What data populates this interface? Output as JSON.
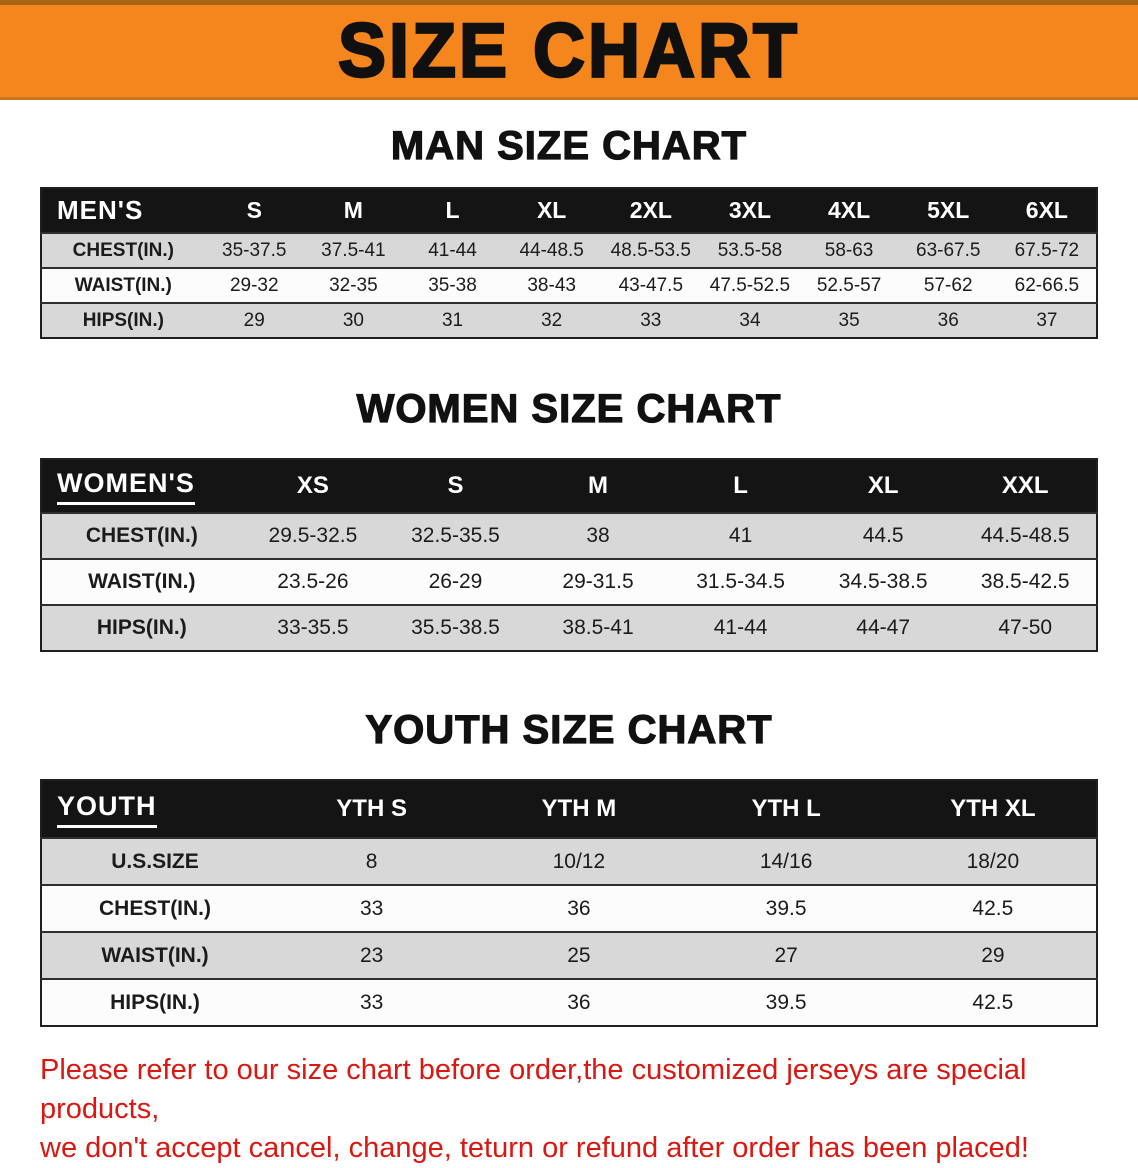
{
  "banner": {
    "title": "SIZE CHART"
  },
  "colors": {
    "banner_orange": "#f5861d",
    "table_header_black": "#141414",
    "row_gray": "#d8d8d8",
    "row_white": "#fcfcfc",
    "disclaimer_red": "#da1710"
  },
  "men": {
    "heading": "MAN SIZE CHART",
    "header": [
      "MEN'S",
      "S",
      "M",
      "L",
      "XL",
      "2XL",
      "3XL",
      "4XL",
      "5XL",
      "6XL"
    ],
    "rows": [
      {
        "label": "CHEST(IN.)",
        "v": [
          "35-37.5",
          "37.5-41",
          "41-44",
          "44-48.5",
          "48.5-53.5",
          "53.5-58",
          "58-63",
          "63-67.5",
          "67.5-72"
        ]
      },
      {
        "label": "WAIST(IN.)",
        "v": [
          "29-32",
          "32-35",
          "35-38",
          "38-43",
          "43-47.5",
          "47.5-52.5",
          "52.5-57",
          "57-62",
          "62-66.5"
        ]
      },
      {
        "label": "HIPS(IN.)",
        "v": [
          "29",
          "30",
          "31",
          "32",
          "33",
          "34",
          "35",
          "36",
          "37"
        ]
      }
    ]
  },
  "women": {
    "heading": "WOMEN SIZE CHART",
    "header": [
      "WOMEN'S",
      "XS",
      "S",
      "M",
      "L",
      "XL",
      "XXL"
    ],
    "rows": [
      {
        "label": "CHEST(IN.)",
        "v": [
          "29.5-32.5",
          "32.5-35.5",
          "38",
          "41",
          "44.5",
          "44.5-48.5"
        ]
      },
      {
        "label": "WAIST(IN.)",
        "v": [
          "23.5-26",
          "26-29",
          "29-31.5",
          "31.5-34.5",
          "34.5-38.5",
          "38.5-42.5"
        ]
      },
      {
        "label": "HIPS(IN.)",
        "v": [
          "33-35.5",
          "35.5-38.5",
          "38.5-41",
          "41-44",
          "44-47",
          "47-50"
        ]
      }
    ]
  },
  "youth": {
    "heading": "YOUTH SIZE CHART",
    "header": [
      "YOUTH",
      "YTH S",
      "YTH M",
      "YTH L",
      "YTH XL"
    ],
    "rows": [
      {
        "label": "U.S.SIZE",
        "v": [
          "8",
          "10/12",
          "14/16",
          "18/20"
        ]
      },
      {
        "label": "CHEST(IN.)",
        "v": [
          "33",
          "36",
          "39.5",
          "42.5"
        ]
      },
      {
        "label": "WAIST(IN.)",
        "v": [
          "23",
          "25",
          "27",
          "29"
        ]
      },
      {
        "label": "HIPS(IN.)",
        "v": [
          "33",
          "36",
          "39.5",
          "42.5"
        ]
      }
    ]
  },
  "disclaimer": {
    "line1": "Please refer to our size chart before order,the customized jerseys are special products,",
    "line2": "we don't accept cancel, change, teturn or refund after order has been placed!"
  }
}
